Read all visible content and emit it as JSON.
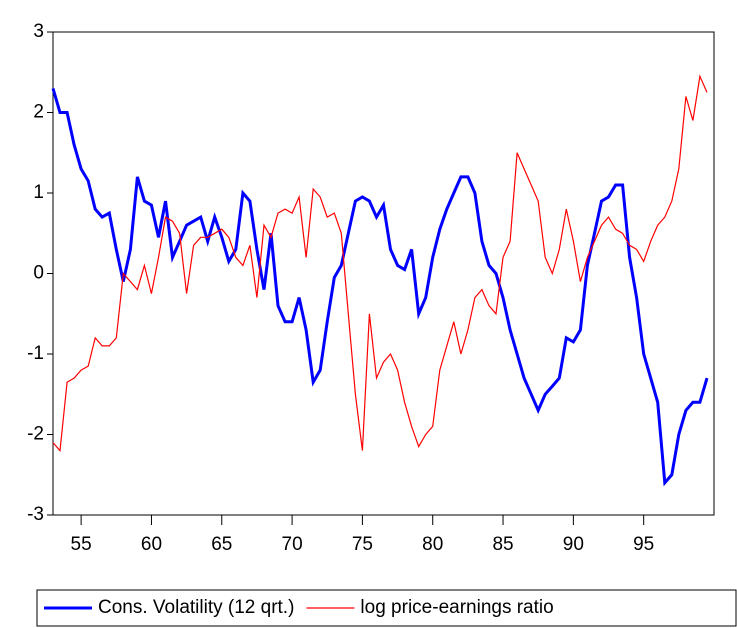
{
  "chart_data": {
    "type": "line",
    "x": [
      53,
      53.5,
      54,
      54.5,
      55,
      55.5,
      56,
      56.5,
      57,
      57.5,
      58,
      58.5,
      59,
      59.5,
      60,
      60.5,
      61,
      61.5,
      62,
      62.5,
      63,
      63.5,
      64,
      64.5,
      65,
      65.5,
      66,
      66.5,
      67,
      67.5,
      68,
      68.5,
      69,
      69.5,
      70,
      70.5,
      71,
      71.5,
      72,
      72.5,
      73,
      73.5,
      74,
      74.5,
      75,
      75.5,
      76,
      76.5,
      77,
      77.5,
      78,
      78.5,
      79,
      79.5,
      80,
      80.5,
      81,
      81.5,
      82,
      82.5,
      83,
      83.5,
      84,
      84.5,
      85,
      85.5,
      86,
      86.5,
      87,
      87.5,
      88,
      88.5,
      89,
      89.5,
      90,
      90.5,
      91,
      91.5,
      92,
      92.5,
      93,
      93.5,
      94,
      94.5,
      95,
      95.5,
      96,
      96.5,
      97,
      97.5,
      98,
      98.5,
      99,
      99.5
    ],
    "series": [
      {
        "name": "Cons. Volatility (12 qrt.)",
        "color": "#0000ff",
        "values": [
          2.3,
          2.0,
          2.0,
          1.6,
          1.3,
          1.15,
          0.8,
          0.7,
          0.75,
          0.3,
          -0.1,
          0.3,
          1.2,
          0.9,
          0.85,
          0.45,
          0.9,
          0.2,
          0.4,
          0.6,
          0.65,
          0.7,
          0.4,
          0.7,
          0.45,
          0.15,
          0.3,
          1.0,
          0.9,
          0.3,
          -0.2,
          0.5,
          -0.4,
          -0.6,
          -0.6,
          -0.3,
          -0.7,
          -1.35,
          -1.2,
          -0.6,
          -0.05,
          0.1,
          0.5,
          0.9,
          0.95,
          0.9,
          0.7,
          0.85,
          0.3,
          0.1,
          0.05,
          0.3,
          -0.5,
          -0.3,
          0.2,
          0.55,
          0.8,
          1.0,
          1.2,
          1.2,
          1.0,
          0.4,
          0.1,
          0.0,
          -0.3,
          -0.7,
          -1.0,
          -1.3,
          -1.5,
          -1.7,
          -1.5,
          -1.4,
          -1.3,
          -0.8,
          -0.85,
          -0.7,
          0.1,
          0.5,
          0.9,
          0.95,
          1.1,
          1.1,
          0.2,
          -0.3,
          -1.0,
          -1.3,
          -1.6,
          -2.6,
          -2.5,
          -2.0,
          -1.7,
          -1.6,
          -1.6,
          -1.3
        ]
      },
      {
        "name": "log price-earnings ratio",
        "color": "#ff0000",
        "values": [
          -2.1,
          -2.2,
          -1.35,
          -1.3,
          -1.2,
          -1.15,
          -0.8,
          -0.9,
          -0.9,
          -0.8,
          0.0,
          -0.1,
          -0.2,
          0.1,
          -0.25,
          0.2,
          0.7,
          0.65,
          0.5,
          -0.25,
          0.35,
          0.45,
          0.45,
          0.5,
          0.55,
          0.45,
          0.2,
          0.1,
          0.35,
          -0.3,
          0.6,
          0.45,
          0.75,
          0.8,
          0.75,
          0.95,
          0.2,
          1.05,
          0.95,
          0.7,
          0.75,
          0.5,
          -0.5,
          -1.5,
          -2.2,
          -0.5,
          -1.3,
          -1.1,
          -1.0,
          -1.2,
          -1.6,
          -1.9,
          -2.15,
          -2.0,
          -1.9,
          -1.2,
          -0.9,
          -0.6,
          -1.0,
          -0.7,
          -0.3,
          -0.2,
          -0.4,
          -0.5,
          0.2,
          0.4,
          1.5,
          1.3,
          1.1,
          0.9,
          0.2,
          0.0,
          0.3,
          0.8,
          0.4,
          -0.1,
          0.2,
          0.4,
          0.6,
          0.7,
          0.55,
          0.5,
          0.35,
          0.3,
          0.15,
          0.4,
          0.6,
          0.7,
          0.9,
          1.3,
          2.2,
          1.9,
          2.45,
          2.25
        ]
      }
    ],
    "xlim": [
      53,
      100
    ],
    "xticks": [
      55,
      60,
      65,
      70,
      75,
      80,
      85,
      90,
      95
    ],
    "ylim": [
      -3,
      3
    ],
    "yticks": [
      -3,
      -2,
      -1,
      0,
      1,
      2,
      3
    ],
    "legend": "bottom"
  }
}
